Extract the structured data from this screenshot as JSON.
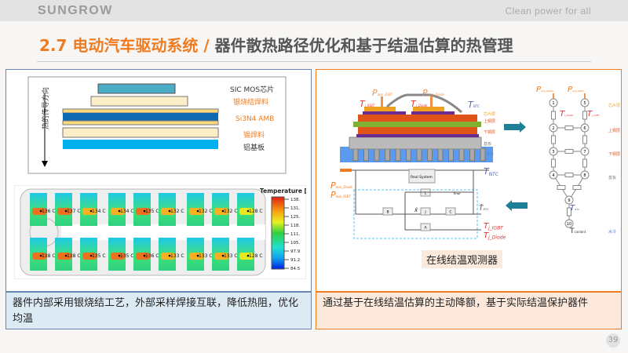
{
  "header": {
    "logo": "SUNGROW",
    "tagline": "Clean power for all"
  },
  "title": {
    "section": "2.7 电动汽车驱动系统",
    "separator": " / ",
    "subject": "器件散热路径优化和基于结温估算的热管理"
  },
  "left": {
    "stack": {
      "arrow_label": "热的传导方向",
      "layers": [
        "SIC MOS芯片",
        "银烧结焊料",
        "Si3N4 AMB",
        "锡焊料",
        "铝基板"
      ]
    },
    "thermal": {
      "legend_title": "Temperature [C]",
      "legend_ticks": [
        "138.",
        "131.",
        "125.",
        "118.",
        "111.",
        "105.",
        "97.9",
        "91.2",
        "84.5"
      ],
      "top_row": [
        "136 C",
        "137 C",
        "134 C",
        "134 C",
        "135 C",
        "132 C",
        "132 C",
        "132 C",
        "128 C"
      ],
      "bottom_row": [
        "138 C",
        "138 C",
        "135 C",
        "135 C",
        "136 C",
        "133 C",
        "133 C",
        "133 C",
        "128 C"
      ]
    },
    "caption": "器件内部采用银烧结工艺，外部采样焊接互联，降低热阻，优化均温"
  },
  "right": {
    "cross_section": {
      "p_igbt": "P",
      "p_igbt_sub": "loss_IGBT",
      "p_diode": "P",
      "p_diode_sub": "loss_Diode",
      "tj_igbt": "T",
      "tj_igbt_sub": "j_IGBT",
      "tj_diode": "T",
      "tj_diode_sub": "j_Diode",
      "tntc": "T",
      "tntc_sub": "NTC",
      "layers": [
        "芯片层",
        "上铜层",
        "下铜层",
        "基板",
        "水冷"
      ]
    },
    "observer": {
      "p_diode": "P",
      "p_diode_sub": "loss_Diode",
      "p_igbt": "P",
      "p_igbt_sub": "loss_IGBT",
      "real_system": "Real System",
      "blocks": [
        "B",
        "L",
        "J",
        "C",
        "A"
      ],
      "error": "Error",
      "out_ntc": "T",
      "out_ntc_sub": "NTC",
      "est_ntc": "T̂",
      "est_ntc_sub": "NTC",
      "tj_igbt": "T",
      "tj_igbt_sub": "j_IGBT",
      "tj_diode": "T",
      "tj_diode_sub": "j_Diode",
      "xhat": "X̂"
    },
    "network": {
      "p_diode": "P",
      "p_diode_sub": "loss_Diode",
      "p_igbt": "P",
      "p_igbt_sub": "loss_IGBT",
      "tj_diode": "T",
      "tj_diode_sub": "j_Diode",
      "tj_igbt": "T",
      "tj_igbt_sub": "j_IGBT",
      "tntc": "T",
      "tntc_sub": "NTC",
      "tcoolant": "T",
      "tcoolant_sub": "coolant",
      "nodes": [
        "1",
        "2",
        "3",
        "4",
        "5",
        "6",
        "7",
        "8",
        "9",
        "10"
      ],
      "layers": [
        "芯片层",
        "上铜层",
        "下铜层",
        "基板",
        "水冷"
      ]
    },
    "observer_label": "在线结温观测器",
    "caption": "通过基于在线结温估算的主动降额，基于实际结温保护器件"
  },
  "page_number": "39",
  "colors": {
    "accent": "#f07c22",
    "left_border": "#6a86b2"
  }
}
